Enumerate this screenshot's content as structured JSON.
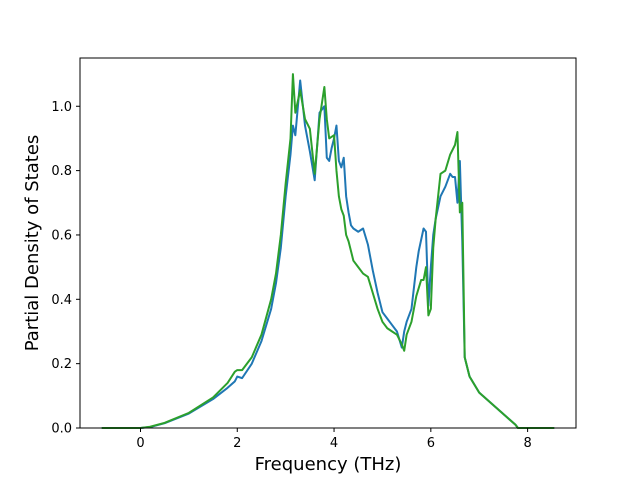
{
  "chart_data": {
    "type": "line",
    "title": "",
    "xlabel": "Frequency (THz)",
    "ylabel": "Partial Density of States",
    "xlim": [
      -1.25,
      9.0
    ],
    "ylim": [
      0.0,
      1.15
    ],
    "xticks": [
      0,
      2,
      4,
      6,
      8
    ],
    "yticks": [
      0.0,
      0.2,
      0.4,
      0.6,
      0.8,
      1.0
    ],
    "xtick_labels": [
      "0",
      "2",
      "4",
      "6",
      "8"
    ],
    "ytick_labels": [
      "0.0",
      "0.2",
      "0.4",
      "0.6",
      "0.8",
      "1.0"
    ],
    "grid": false,
    "legend": "none",
    "series": [
      {
        "color": "#1f77b4",
        "x": [
          -0.8,
          0.0,
          0.2,
          0.5,
          1.0,
          1.5,
          1.8,
          1.95,
          2.0,
          2.1,
          2.3,
          2.5,
          2.7,
          2.8,
          2.9,
          3.0,
          3.1,
          3.15,
          3.2,
          3.3,
          3.4,
          3.5,
          3.6,
          3.7,
          3.8,
          3.85,
          3.9,
          3.95,
          4.0,
          4.05,
          4.1,
          4.15,
          4.2,
          4.25,
          4.3,
          4.35,
          4.4,
          4.5,
          4.6,
          4.7,
          4.8,
          4.9,
          5.0,
          5.1,
          5.2,
          5.3,
          5.4,
          5.45,
          5.5,
          5.6,
          5.7,
          5.75,
          5.85,
          5.9,
          5.95,
          6.0,
          6.05,
          6.1,
          6.2,
          6.3,
          6.4,
          6.45,
          6.5,
          6.55,
          6.6,
          6.65,
          6.7,
          6.8,
          7.0,
          7.3,
          7.6,
          7.75,
          7.8,
          8.0,
          8.55
        ],
        "y": [
          0.0,
          0.0,
          0.003,
          0.015,
          0.045,
          0.09,
          0.125,
          0.145,
          0.16,
          0.155,
          0.2,
          0.27,
          0.37,
          0.45,
          0.56,
          0.72,
          0.85,
          0.94,
          0.91,
          1.08,
          0.94,
          0.86,
          0.77,
          0.98,
          1.0,
          0.84,
          0.83,
          0.87,
          0.9,
          0.94,
          0.83,
          0.81,
          0.84,
          0.72,
          0.67,
          0.63,
          0.62,
          0.61,
          0.62,
          0.57,
          0.49,
          0.42,
          0.36,
          0.34,
          0.32,
          0.3,
          0.25,
          0.3,
          0.33,
          0.37,
          0.5,
          0.55,
          0.62,
          0.61,
          0.38,
          0.5,
          0.6,
          0.65,
          0.72,
          0.75,
          0.79,
          0.78,
          0.78,
          0.7,
          0.83,
          0.58,
          0.22,
          0.16,
          0.11,
          0.07,
          0.03,
          0.01,
          0.0,
          0.0,
          0.0
        ]
      },
      {
        "color": "#2ca02c",
        "x": [
          -0.8,
          0.0,
          0.2,
          0.5,
          1.0,
          1.5,
          1.8,
          1.95,
          2.0,
          2.1,
          2.3,
          2.5,
          2.7,
          2.8,
          2.9,
          3.0,
          3.1,
          3.15,
          3.2,
          3.3,
          3.4,
          3.5,
          3.6,
          3.7,
          3.8,
          3.85,
          3.9,
          4.0,
          4.05,
          4.1,
          4.15,
          4.2,
          4.25,
          4.3,
          4.4,
          4.5,
          4.6,
          4.7,
          4.8,
          4.9,
          5.0,
          5.1,
          5.2,
          5.3,
          5.4,
          5.45,
          5.5,
          5.6,
          5.7,
          5.8,
          5.85,
          5.9,
          5.95,
          6.0,
          6.05,
          6.1,
          6.15,
          6.2,
          6.3,
          6.4,
          6.5,
          6.55,
          6.6,
          6.65,
          6.7,
          6.8,
          7.0,
          7.3,
          7.6,
          7.75,
          7.8,
          8.0,
          8.55
        ],
        "y": [
          0.0,
          0.0,
          0.004,
          0.016,
          0.047,
          0.095,
          0.14,
          0.175,
          0.18,
          0.18,
          0.22,
          0.29,
          0.4,
          0.48,
          0.6,
          0.76,
          0.9,
          1.1,
          0.98,
          1.05,
          0.96,
          0.93,
          0.79,
          0.96,
          1.06,
          0.96,
          0.9,
          0.91,
          0.8,
          0.72,
          0.68,
          0.66,
          0.6,
          0.58,
          0.52,
          0.5,
          0.48,
          0.47,
          0.42,
          0.37,
          0.33,
          0.31,
          0.3,
          0.29,
          0.26,
          0.24,
          0.29,
          0.33,
          0.41,
          0.46,
          0.46,
          0.5,
          0.35,
          0.37,
          0.56,
          0.65,
          0.72,
          0.79,
          0.8,
          0.85,
          0.88,
          0.92,
          0.67,
          0.7,
          0.22,
          0.16,
          0.11,
          0.07,
          0.03,
          0.01,
          0.0,
          0.0,
          0.0
        ]
      }
    ]
  }
}
